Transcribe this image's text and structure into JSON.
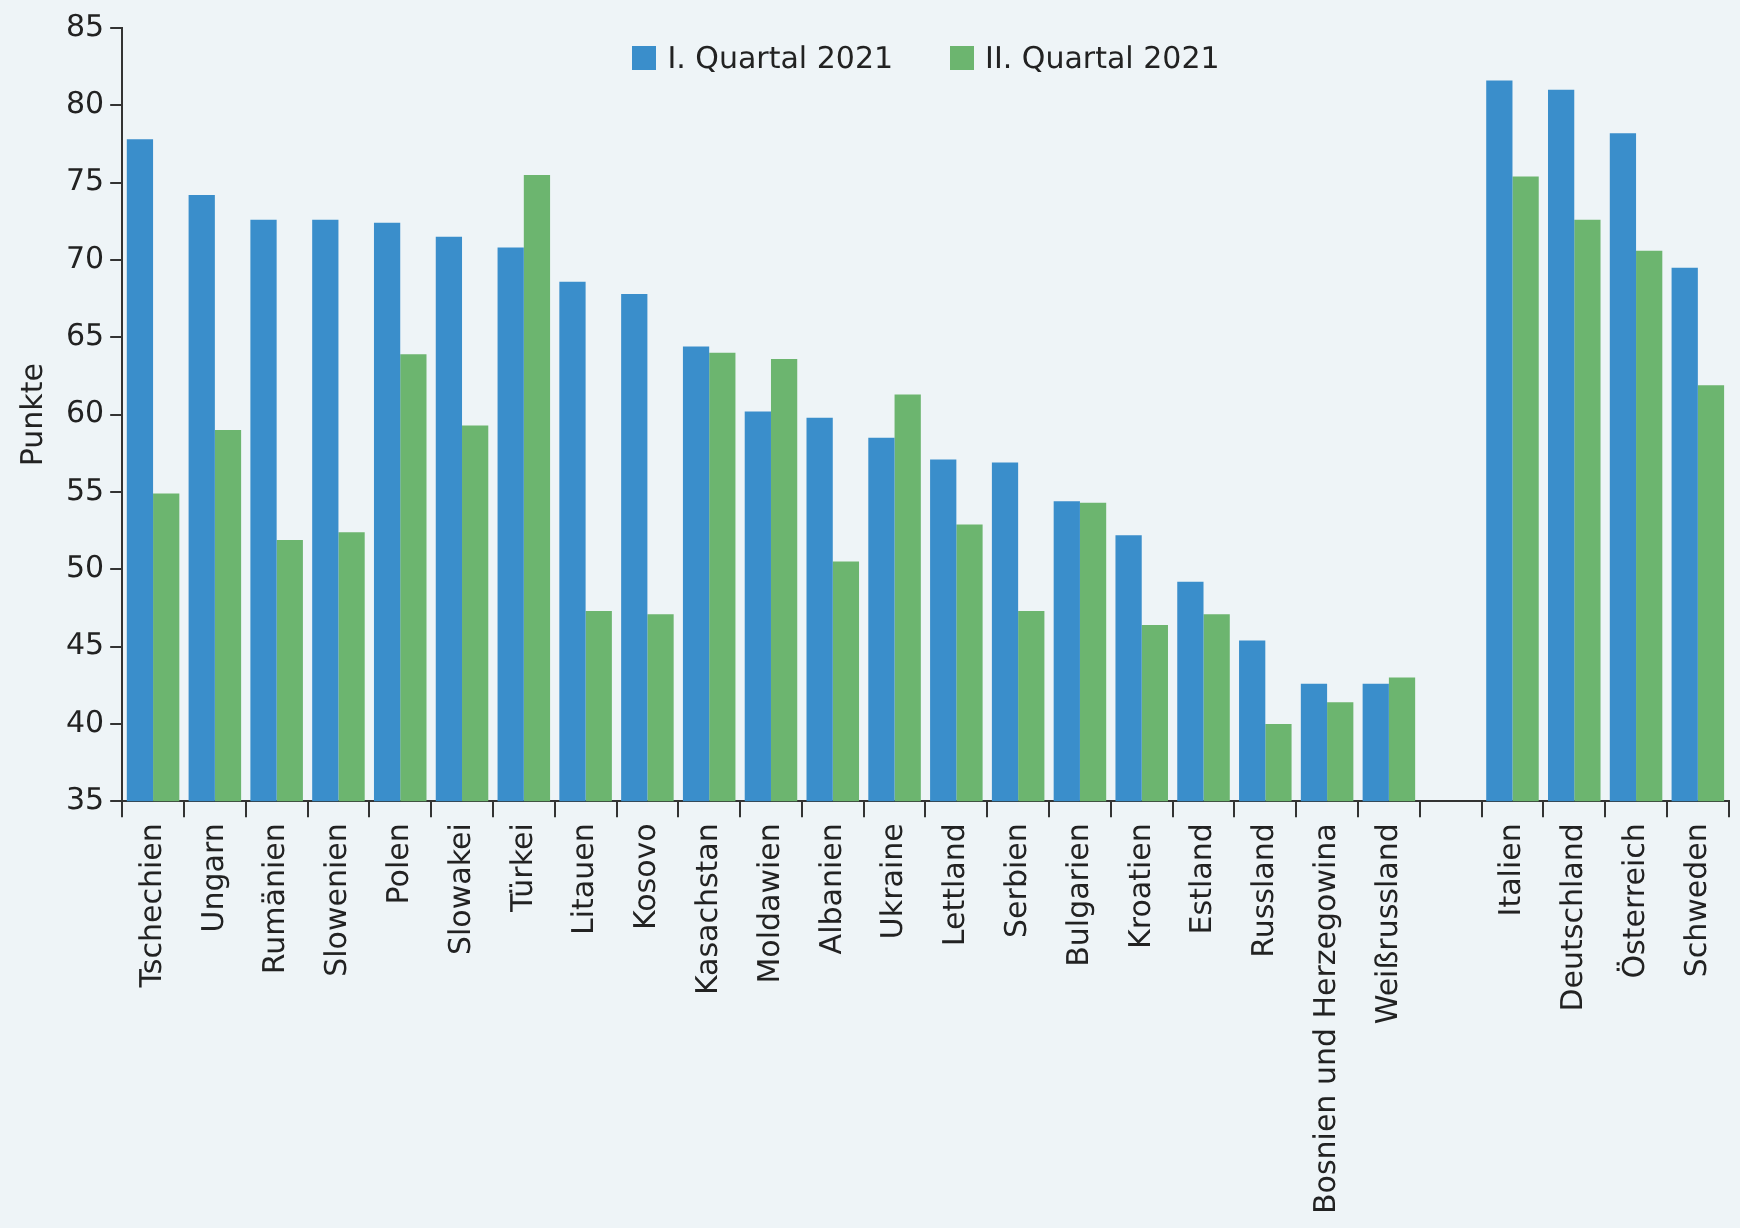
{
  "chart_data": {
    "type": "bar",
    "ylabel": "Punkte",
    "categories": [
      "Tschechien",
      "Ungarn",
      "Rumänien",
      "Slowenien",
      "Polen",
      "Slowakei",
      "Türkei",
      "Litauen",
      "Kosovo",
      "Kasachstan",
      "Moldawien",
      "Albanien",
      "Ukraine",
      "Lettland",
      "Serbien",
      "Bulgarien",
      "Kroatien",
      "Estland",
      "Russland",
      "Bosnien und Herzegowina",
      "Weißrussland",
      null,
      "Italien",
      "Deutschland",
      "Österreich",
      "Schweden"
    ],
    "series": [
      {
        "name": "I. Quartal 2021",
        "color": "#3a8ecb",
        "values": [
          77.8,
          74.2,
          72.6,
          72.6,
          72.4,
          71.5,
          70.8,
          68.6,
          67.8,
          64.4,
          60.2,
          59.8,
          58.5,
          57.1,
          56.9,
          54.4,
          52.2,
          49.2,
          45.4,
          42.6,
          42.6,
          null,
          81.6,
          81.0,
          78.2,
          69.5
        ]
      },
      {
        "name": "II. Quartal 2021",
        "color": "#6cb56f",
        "values": [
          54.9,
          59.0,
          51.9,
          52.4,
          63.9,
          59.3,
          75.5,
          47.3,
          47.1,
          64.0,
          63.6,
          50.5,
          61.3,
          52.9,
          47.3,
          54.3,
          46.4,
          47.1,
          40.0,
          41.4,
          43.0,
          null,
          75.4,
          72.6,
          70.6,
          61.9
        ]
      }
    ],
    "ylim": [
      35,
      85
    ],
    "yticks": [
      35,
      40,
      45,
      50,
      55,
      60,
      65,
      70,
      75,
      80,
      85
    ],
    "grid": false,
    "legend": "top"
  }
}
